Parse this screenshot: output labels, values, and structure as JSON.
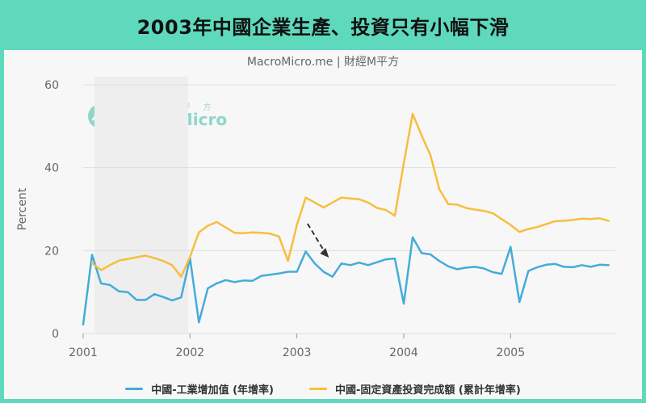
{
  "title": "2003年中國企業生產、投資只有小幅下滑",
  "subtitle": "MacroMicro.me | 財經M平方",
  "watermark": {
    "small": "財 經 M 平 方",
    "big": "MacroMicro"
  },
  "colors": {
    "background": "#5ed9bc",
    "industrial": "#44acd9",
    "fixed_asset": "#f7be3e",
    "grid": "#dddddd"
  },
  "chart_data": {
    "type": "line",
    "ylabel": "Percent",
    "ylim": [
      0,
      60
    ],
    "yticks": [
      0,
      20,
      40,
      60
    ],
    "xlim": [
      2001.0,
      2005.98
    ],
    "xticks": [
      {
        "label": "2001",
        "value": 2001
      },
      {
        "label": "2002",
        "value": 2002
      },
      {
        "label": "2003",
        "value": 2003
      },
      {
        "label": "2004",
        "value": 2004
      },
      {
        "label": "2005",
        "value": 2005
      }
    ],
    "grid": true,
    "legend_position": "bottom",
    "annotation": "dashed arrow pointing down near mid-2003",
    "series": [
      {
        "name": "中國-工業增加值 (年增率)",
        "color": "#44acd9",
        "x": [
          2001.0,
          2001.083,
          2001.167,
          2001.25,
          2001.333,
          2001.417,
          2001.5,
          2001.583,
          2001.667,
          2001.75,
          2001.833,
          2001.917,
          2002.0,
          2002.083,
          2002.167,
          2002.25,
          2002.333,
          2002.417,
          2002.5,
          2002.583,
          2002.667,
          2002.75,
          2002.833,
          2002.917,
          2003.0,
          2003.083,
          2003.167,
          2003.25,
          2003.333,
          2003.417,
          2003.5,
          2003.583,
          2003.667,
          2003.75,
          2003.833,
          2003.917,
          2004.0,
          2004.083,
          2004.167,
          2004.25,
          2004.333,
          2004.417,
          2004.5,
          2004.583,
          2004.667,
          2004.75,
          2004.833,
          2004.917,
          2005.0,
          2005.083,
          2005.167,
          2005.25,
          2005.333,
          2005.417,
          2005.5,
          2005.583,
          2005.667,
          2005.75,
          2005.833,
          2005.917
        ],
        "values": [
          2.2,
          19.0,
          12.1,
          11.7,
          10.2,
          10.0,
          8.1,
          8.1,
          9.5,
          8.8,
          8.0,
          8.7,
          18.2,
          2.7,
          10.9,
          12.1,
          12.9,
          12.4,
          12.8,
          12.7,
          13.9,
          14.2,
          14.5,
          14.9,
          14.9,
          19.8,
          16.9,
          14.9,
          13.7,
          16.9,
          16.5,
          17.1,
          16.5,
          17.2,
          17.9,
          18.1,
          7.2,
          23.2,
          19.4,
          19.1,
          17.5,
          16.2,
          15.5,
          15.9,
          16.1,
          15.7,
          14.8,
          14.4,
          20.9,
          7.6,
          15.1,
          16.0,
          16.6,
          16.8,
          16.1,
          16.0,
          16.5,
          16.1,
          16.6,
          16.5
        ]
      },
      {
        "name": "中國-固定資產投資完成額 (累計年增率)",
        "color": "#f7be3e",
        "x": [
          2001.083,
          2001.167,
          2001.25,
          2001.333,
          2001.417,
          2001.5,
          2001.583,
          2001.667,
          2001.75,
          2001.833,
          2001.917,
          2002.0,
          2002.083,
          2002.167,
          2002.25,
          2002.333,
          2002.417,
          2002.5,
          2002.583,
          2002.667,
          2002.75,
          2002.833,
          2002.917,
          2003.0,
          2003.083,
          2003.167,
          2003.25,
          2003.333,
          2003.417,
          2003.5,
          2003.583,
          2003.667,
          2003.75,
          2003.833,
          2003.917,
          2004.0,
          2004.083,
          2004.167,
          2004.25,
          2004.333,
          2004.417,
          2004.5,
          2004.583,
          2004.667,
          2004.75,
          2004.833,
          2004.917,
          2005.0,
          2005.083,
          2005.167,
          2005.25,
          2005.333,
          2005.417,
          2005.5,
          2005.583,
          2005.667,
          2005.75,
          2005.833,
          2005.917
        ],
        "values": [
          17.0,
          15.3,
          16.5,
          17.6,
          18.0,
          18.4,
          18.8,
          18.2,
          17.5,
          16.5,
          13.7,
          18.5,
          24.4,
          26.0,
          26.9,
          25.6,
          24.3,
          24.2,
          24.4,
          24.3,
          24.1,
          23.4,
          17.5,
          26.2,
          32.8,
          31.6,
          30.4,
          31.6,
          32.8,
          32.6,
          32.4,
          31.6,
          30.3,
          29.8,
          28.4,
          41.0,
          53.0,
          47.8,
          43.0,
          34.8,
          31.2,
          31.1,
          30.3,
          29.9,
          29.6,
          29.0,
          27.6,
          26.2,
          24.5,
          25.2,
          25.7,
          26.4,
          27.1,
          27.2,
          27.4,
          27.7,
          27.6,
          27.8,
          27.2
        ]
      }
    ]
  }
}
